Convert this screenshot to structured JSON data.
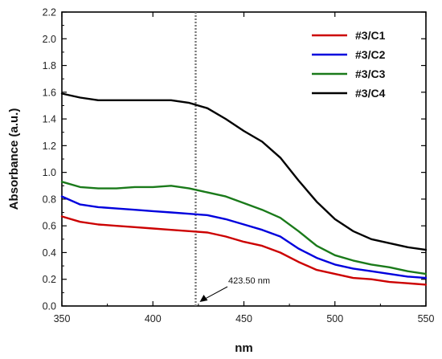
{
  "chart_data": {
    "type": "line",
    "title": "",
    "xlabel": "nm",
    "ylabel": "Absorbance (a.u.)",
    "xlim": [
      350,
      550
    ],
    "ylim": [
      0.0,
      2.2
    ],
    "x_ticks": [
      "350",
      "400",
      "450",
      "500",
      "550"
    ],
    "y_ticks": [
      "0.0",
      "0.2",
      "0.4",
      "0.6",
      "0.8",
      "1.0",
      "1.2",
      "1.4",
      "1.6",
      "1.8",
      "2.0",
      "2.2"
    ],
    "grid": false,
    "legend_position": "top-right",
    "series": [
      {
        "name": "#3/C1",
        "color": "#cc0000",
        "points": [
          [
            350,
            0.67
          ],
          [
            360,
            0.63
          ],
          [
            370,
            0.61
          ],
          [
            380,
            0.6
          ],
          [
            390,
            0.59
          ],
          [
            400,
            0.58
          ],
          [
            410,
            0.57
          ],
          [
            420,
            0.56
          ],
          [
            430,
            0.55
          ],
          [
            440,
            0.52
          ],
          [
            450,
            0.48
          ],
          [
            460,
            0.45
          ],
          [
            470,
            0.4
          ],
          [
            480,
            0.33
          ],
          [
            490,
            0.27
          ],
          [
            500,
            0.24
          ],
          [
            510,
            0.21
          ],
          [
            520,
            0.2
          ],
          [
            530,
            0.18
          ],
          [
            540,
            0.17
          ],
          [
            550,
            0.16
          ]
        ]
      },
      {
        "name": "#3/C2",
        "color": "#0000dd",
        "points": [
          [
            350,
            0.82
          ],
          [
            360,
            0.76
          ],
          [
            370,
            0.74
          ],
          [
            380,
            0.73
          ],
          [
            390,
            0.72
          ],
          [
            400,
            0.71
          ],
          [
            410,
            0.7
          ],
          [
            420,
            0.69
          ],
          [
            430,
            0.68
          ],
          [
            440,
            0.65
          ],
          [
            450,
            0.61
          ],
          [
            460,
            0.57
          ],
          [
            470,
            0.52
          ],
          [
            480,
            0.43
          ],
          [
            490,
            0.36
          ],
          [
            500,
            0.31
          ],
          [
            510,
            0.28
          ],
          [
            520,
            0.26
          ],
          [
            530,
            0.24
          ],
          [
            540,
            0.22
          ],
          [
            550,
            0.21
          ]
        ]
      },
      {
        "name": "#3/C3",
        "color": "#1a7a1a",
        "points": [
          [
            350,
            0.93
          ],
          [
            360,
            0.89
          ],
          [
            370,
            0.88
          ],
          [
            380,
            0.88
          ],
          [
            390,
            0.89
          ],
          [
            400,
            0.89
          ],
          [
            410,
            0.9
          ],
          [
            420,
            0.88
          ],
          [
            430,
            0.85
          ],
          [
            440,
            0.82
          ],
          [
            450,
            0.77
          ],
          [
            460,
            0.72
          ],
          [
            470,
            0.66
          ],
          [
            480,
            0.56
          ],
          [
            490,
            0.45
          ],
          [
            500,
            0.38
          ],
          [
            510,
            0.34
          ],
          [
            520,
            0.31
          ],
          [
            530,
            0.29
          ],
          [
            540,
            0.26
          ],
          [
            550,
            0.24
          ]
        ]
      },
      {
        "name": "#3/C4",
        "color": "#000000",
        "points": [
          [
            350,
            1.59
          ],
          [
            360,
            1.56
          ],
          [
            370,
            1.54
          ],
          [
            380,
            1.54
          ],
          [
            390,
            1.54
          ],
          [
            400,
            1.54
          ],
          [
            410,
            1.54
          ],
          [
            420,
            1.52
          ],
          [
            430,
            1.48
          ],
          [
            440,
            1.4
          ],
          [
            450,
            1.31
          ],
          [
            460,
            1.23
          ],
          [
            470,
            1.11
          ],
          [
            480,
            0.94
          ],
          [
            490,
            0.78
          ],
          [
            500,
            0.65
          ],
          [
            510,
            0.56
          ],
          [
            520,
            0.5
          ],
          [
            530,
            0.47
          ],
          [
            540,
            0.44
          ],
          [
            550,
            0.42
          ]
        ]
      }
    ],
    "annotations": [
      {
        "x": 423.5,
        "text": "423.50 nm",
        "line_style": "dotted",
        "line_color": "#777777"
      }
    ]
  }
}
